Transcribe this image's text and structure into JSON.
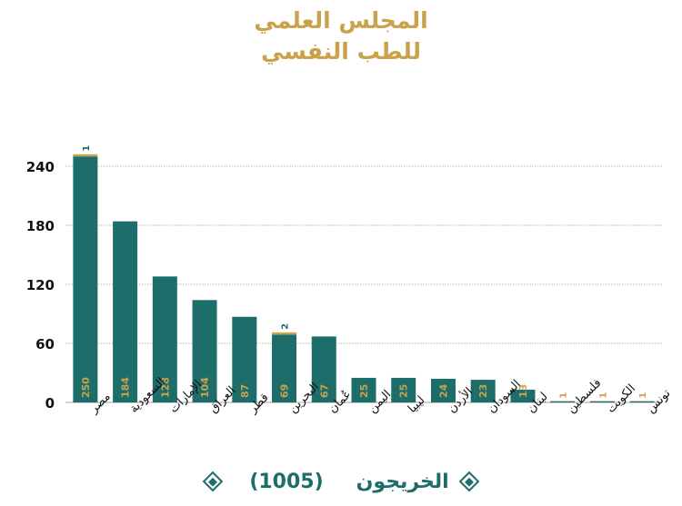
{
  "title_line1": "المجلس العلمي",
  "title_line2": "للطب النفسي",
  "legend": {
    "label": "الخريجون",
    "count": "(1005)",
    "icon": "diamond-icon"
  },
  "colors": {
    "bar": "#1d6e6b",
    "accent": "#c9a24a",
    "grid": "#9a9a9a",
    "axis_text": "#111111"
  },
  "chart_data": {
    "type": "bar",
    "stacked": true,
    "categories": [
      "مصر",
      "السعودية",
      "الإمارات",
      "العراق",
      "قطر",
      "البحرين",
      "عُمان",
      "اليمن",
      "ليبيا",
      "الأردن",
      "السودان",
      "لبنان",
      "فلسطين",
      "الكويت",
      "تونس"
    ],
    "series": [
      {
        "name": "",
        "color": "#1d6e6b",
        "values": [
          250,
          184,
          128,
          104,
          87,
          69,
          67,
          25,
          25,
          24,
          23,
          13,
          0,
          0,
          0
        ]
      },
      {
        "name": "",
        "color": "#c9a24a",
        "values": [
          1,
          0,
          0,
          0,
          0,
          2,
          0,
          0,
          0,
          0,
          0,
          0,
          1,
          1,
          1
        ]
      }
    ],
    "ylim": [
      0,
      250
    ],
    "yticks": [
      0,
      60,
      120,
      180,
      240
    ],
    "grid": true
  }
}
